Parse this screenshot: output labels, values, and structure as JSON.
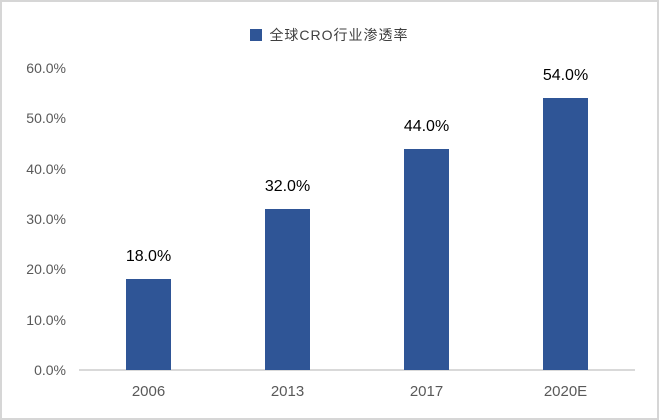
{
  "legend": {
    "label": "全球CRO行业渗透率"
  },
  "colors": {
    "bar": "#2F5596",
    "axis_line": "#D9D9D9",
    "tick_text": "#595959",
    "data_label": "#000000",
    "frame_border": "#D6D6D6",
    "background": "#FFFFFF"
  },
  "chart_data": {
    "type": "bar",
    "title": "",
    "xlabel": "",
    "ylabel": "",
    "legend": [
      "全球CRO行业渗透率"
    ],
    "legend_position": "top-center",
    "categories": [
      "2006",
      "2013",
      "2017",
      "2020E"
    ],
    "series": [
      {
        "name": "全球CRO行业渗透率",
        "values": [
          18.0,
          32.0,
          44.0,
          54.0
        ]
      }
    ],
    "value_labels": [
      "18.0%",
      "32.0%",
      "44.0%",
      "54.0%"
    ],
    "ytick_values": [
      0,
      10,
      20,
      30,
      40,
      50,
      60
    ],
    "ytick_labels": [
      "0.0%",
      "10.0%",
      "20.0%",
      "30.0%",
      "40.0%",
      "50.0%",
      "60.0%"
    ],
    "ylim": [
      0,
      60
    ],
    "grid": false
  }
}
